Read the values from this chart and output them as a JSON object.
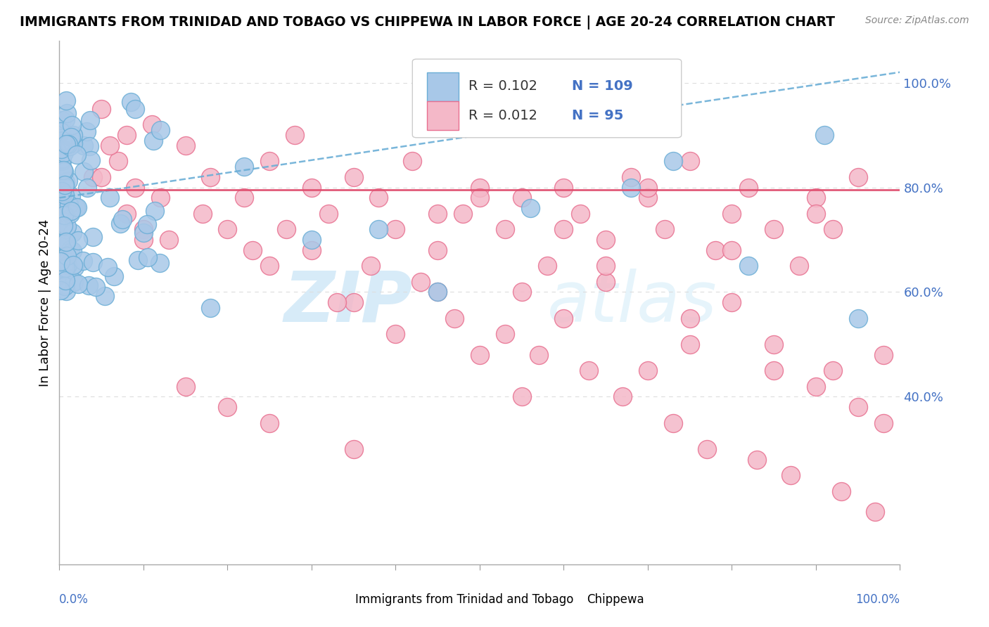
{
  "title": "IMMIGRANTS FROM TRINIDAD AND TOBAGO VS CHIPPEWA IN LABOR FORCE | AGE 20-24 CORRELATION CHART",
  "source": "Source: ZipAtlas.com",
  "ylabel": "In Labor Force | Age 20-24",
  "legend_blue_R": 0.102,
  "legend_blue_N": 109,
  "legend_pink_R": 0.012,
  "legend_pink_N": 95,
  "blue_color": "#a8c8e8",
  "blue_edge_color": "#6baed6",
  "pink_color": "#f4b8c8",
  "pink_edge_color": "#e87090",
  "trend_blue_color": "#6baed6",
  "trend_pink_color": "#e05070",
  "yticks": [
    0.4,
    0.6,
    0.8,
    1.0
  ],
  "ytick_labels": [
    "40.0%",
    "60.0%",
    "80.0%",
    "100.0%"
  ],
  "xlim": [
    0.0,
    1.0
  ],
  "ylim": [
    0.08,
    1.08
  ],
  "watermark_zip": "ZIP",
  "watermark_atlas": "atlas",
  "background_color": "#ffffff",
  "grid_color": "#dddddd",
  "blue_trend_start_x": 0.0,
  "blue_trend_start_y": 0.78,
  "blue_trend_end_x": 1.0,
  "blue_trend_end_y": 1.02,
  "pink_trend_y": 0.795
}
